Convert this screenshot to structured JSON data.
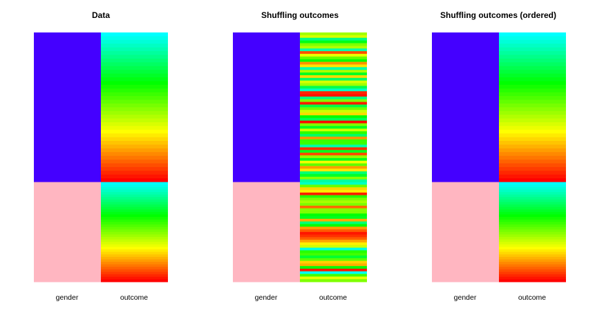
{
  "chart_data": [
    {
      "type": "heatmap",
      "title": "Data",
      "columns": [
        "gender",
        "outcome"
      ],
      "gender_groups": [
        {
          "name": "",
          "color": "#4400ff",
          "share": 0.6
        },
        {
          "name": "",
          "color": "#ffb6c1",
          "share": 0.4
        }
      ],
      "outcome_palette": [
        "#00ffff",
        "#00ff00",
        "#ffff00",
        "#ff0000"
      ],
      "outcome_mode": "sorted_within_group"
    },
    {
      "type": "heatmap",
      "title": "Shuffling outcomes",
      "columns": [
        "gender",
        "outcome"
      ],
      "gender_groups": [
        {
          "name": "",
          "color": "#4400ff",
          "share": 0.6
        },
        {
          "name": "",
          "color": "#ffb6c1",
          "share": 0.4
        }
      ],
      "outcome_palette": [
        "#00ffff",
        "#00ff00",
        "#ffff00",
        "#ff0000"
      ],
      "outcome_mode": "shuffled"
    },
    {
      "type": "heatmap",
      "title": "Shuffling outcomes (ordered)",
      "columns": [
        "gender",
        "outcome"
      ],
      "gender_groups": [
        {
          "name": "",
          "color": "#4400ff",
          "share": 0.6
        },
        {
          "name": "",
          "color": "#ffb6c1",
          "share": 0.4
        }
      ],
      "outcome_palette": [
        "#00ffff",
        "#00ff00",
        "#ffff00",
        "#ff0000"
      ],
      "outcome_mode": "sorted_within_group"
    }
  ]
}
